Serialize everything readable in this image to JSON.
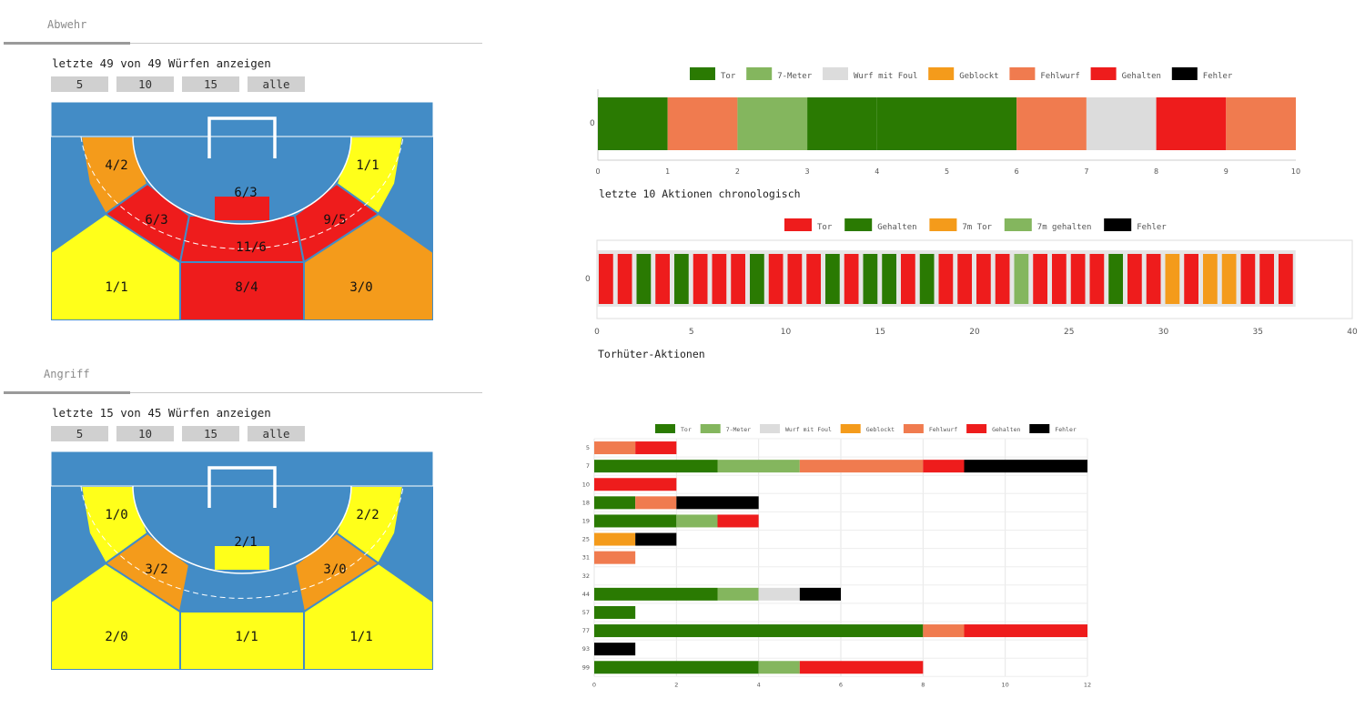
{
  "abwehr": {
    "tab_label": "Abwehr",
    "caption": "letzte 49 von 49 Würfen anzeigen",
    "buttons": [
      "5",
      "10",
      "15",
      "alle"
    ],
    "zones": {
      "left_wing": "4/2",
      "right_wing": "1/1",
      "center_six": "6/3",
      "left_nine": "6/3",
      "center_nine": "11/6",
      "right_nine": "9/5",
      "left_back": "1/1",
      "center_back": "8/4",
      "right_back": "3/0"
    },
    "zone_colors": {
      "left_wing": "#F49B1B",
      "right_wing": "#FFFF1A",
      "center_six": "#EE1C1C",
      "left_nine": "#EE1C1C",
      "center_nine": "#EE1C1C",
      "right_nine": "#EE1C1C",
      "left_back": "#FFFF1A",
      "center_back": "#EE1C1C",
      "right_back": "#F49B1B"
    }
  },
  "angriff": {
    "tab_label": "Angriff",
    "caption": "letzte 15 von 45 Würfen anzeigen",
    "buttons": [
      "5",
      "10",
      "15",
      "alle"
    ],
    "zones": {
      "left_wing": "1/0",
      "right_wing": "2/2",
      "center_six": "2/1",
      "left_nine": "3/2",
      "center_nine": "",
      "right_nine": "3/0",
      "left_back": "2/0",
      "center_back": "1/1",
      "right_back": "1/1"
    },
    "zone_colors": {
      "left_wing": "#FFFF1A",
      "right_wing": "#FFFF1A",
      "center_six": "#FFFF1A",
      "left_nine": "#F49B1B",
      "center_nine": "#438CC6",
      "right_nine": "#F49B1B",
      "left_back": "#FFFF1A",
      "center_back": "#FFFF1A",
      "right_back": "#FFFF1A"
    }
  },
  "colors": {
    "court_blue": "#438CC6",
    "tor": "#2A7A02",
    "siebenmeter": "#84B65E",
    "wurf_mit_foul": "#DCDCDC",
    "geblockt": "#F49B1B",
    "fehlwurf": "#F07B4F",
    "gehalten": "#EE1C1C",
    "fehler": "#000000"
  },
  "chart_data": [
    {
      "type": "bar",
      "orientation": "horizontal-stacked",
      "title": "letzte 10 Aktionen chronologisch",
      "legend": [
        "Tor",
        "7-Meter",
        "Wurf mit Foul",
        "Geblockt",
        "Fehlwurf",
        "Gehalten",
        "Fehler"
      ],
      "legend_colors": [
        "#2A7A02",
        "#84B65E",
        "#DCDCDC",
        "#F49B1B",
        "#F07B4F",
        "#EE1C1C",
        "#000000"
      ],
      "categories": [
        "0"
      ],
      "segments": [
        "Tor",
        "Fehlwurf",
        "7-Meter",
        "Tor",
        "Tor",
        "Fehlwurf",
        "Wurf mit Foul",
        "Gehalten",
        "Fehlwurf"
      ],
      "segment_widths": [
        1,
        1,
        1,
        1,
        2,
        1,
        1,
        1,
        1
      ],
      "xlim": [
        0,
        10
      ],
      "xticks": [
        "0",
        "1",
        "2",
        "3",
        "4",
        "5",
        "6",
        "7",
        "8",
        "9",
        "10"
      ]
    },
    {
      "type": "bar",
      "orientation": "horizontal-stacked",
      "title": "Torhüter-Aktionen",
      "legend": [
        "Tor",
        "Gehalten",
        "7m Tor",
        "7m gehalten",
        "Fehler"
      ],
      "legend_colors": [
        "#EE1C1C",
        "#2A7A02",
        "#F49B1B",
        "#84B65E",
        "#000000"
      ],
      "categories": [
        "0"
      ],
      "segments": [
        "Tor",
        "Tor",
        "Gehalten",
        "Tor",
        "Gehalten",
        "Tor",
        "Tor",
        "Tor",
        "Gehalten",
        "Tor",
        "Tor",
        "Tor",
        "Gehalten",
        "Tor",
        "Gehalten",
        "Gehalten",
        "Tor",
        "Gehalten",
        "Tor",
        "Tor",
        "Tor",
        "Tor",
        "7m gehalten",
        "Tor",
        "Tor",
        "Tor",
        "Tor",
        "Gehalten",
        "Tor",
        "Tor",
        "7m Tor",
        "Tor",
        "7m Tor",
        "7m Tor",
        "Tor",
        "Tor",
        "Tor"
      ],
      "xlim": [
        0,
        40
      ],
      "xticks": [
        "0",
        "5",
        "10",
        "15",
        "20",
        "25",
        "30",
        "35",
        "40"
      ]
    },
    {
      "type": "bar",
      "orientation": "horizontal-stacked",
      "legend": [
        "Tor",
        "7-Meter",
        "Wurf mit Foul",
        "Geblockt",
        "Fehlwurf",
        "Gehalten",
        "Fehler"
      ],
      "legend_colors": [
        "#2A7A02",
        "#84B65E",
        "#DCDCDC",
        "#F49B1B",
        "#F07B4F",
        "#EE1C1C",
        "#000000"
      ],
      "categories": [
        "5",
        "7",
        "10",
        "18",
        "19",
        "25",
        "31",
        "32",
        "44",
        "57",
        "77",
        "93",
        "99"
      ],
      "series": [
        {
          "name": "Tor",
          "values": [
            0,
            3,
            0,
            1,
            2,
            0,
            0,
            0,
            3,
            1,
            8,
            0,
            4
          ]
        },
        {
          "name": "7-Meter",
          "values": [
            0,
            2,
            0,
            0,
            1,
            0,
            0,
            0,
            1,
            0,
            0,
            0,
            1
          ]
        },
        {
          "name": "Wurf mit Foul",
          "values": [
            0,
            0,
            0,
            0,
            0,
            0,
            0,
            0,
            1,
            0,
            0,
            0,
            0
          ]
        },
        {
          "name": "Geblockt",
          "values": [
            0,
            0,
            0,
            0,
            0,
            1,
            0,
            0,
            0,
            0,
            0,
            0,
            0
          ]
        },
        {
          "name": "Fehlwurf",
          "values": [
            1,
            3,
            0,
            1,
            0,
            0,
            1,
            0,
            0,
            0,
            1,
            0,
            0
          ]
        },
        {
          "name": "Gehalten",
          "values": [
            1,
            1,
            2,
            0,
            1,
            0,
            0,
            0,
            0,
            0,
            3,
            0,
            3
          ]
        },
        {
          "name": "Fehler",
          "values": [
            0,
            3,
            0,
            2,
            0,
            1,
            0,
            0,
            1,
            0,
            0,
            1,
            0
          ]
        }
      ],
      "xlim": [
        0,
        12
      ],
      "xticks": [
        "0",
        "2",
        "4",
        "6",
        "8",
        "10",
        "12"
      ]
    }
  ]
}
